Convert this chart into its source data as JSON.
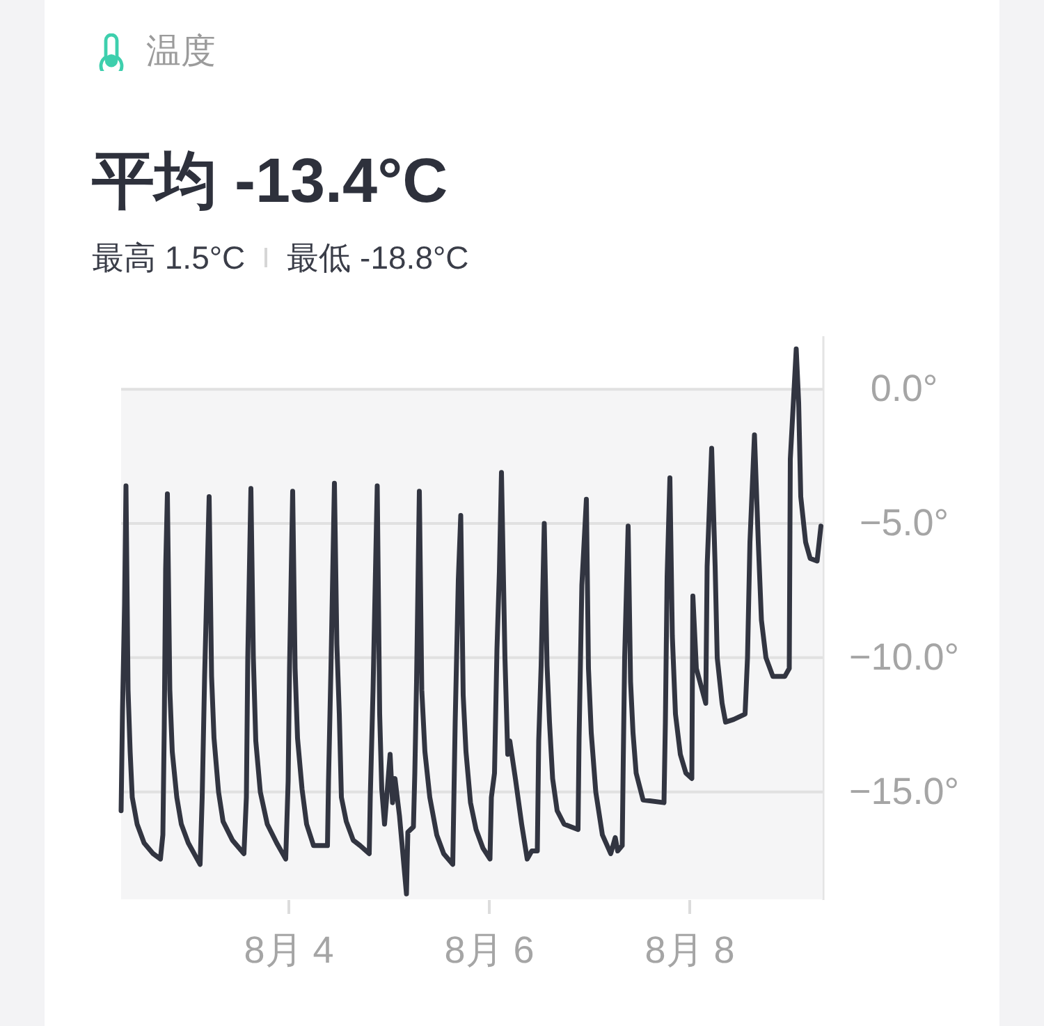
{
  "chart_data": {
    "type": "line",
    "title": "温度",
    "subtitle": "平均 -13.4°C",
    "annotations": [
      "最高 1.5°C",
      "最低 -18.8°C"
    ],
    "x": [
      "--08-02T08:00",
      "--08-02T08:20",
      "--08-02T08:50",
      "--08-02T09:10",
      "--08-02T09:40",
      "--08-02T10:10",
      "--08-02T10:40",
      "--08-02T11:50",
      "--08-02T13:30",
      "--08-02T15:40",
      "--08-02T17:25",
      "--08-02T18:00",
      "--08-02T18:20",
      "--08-02T18:40",
      "--08-02T19:05",
      "--08-02T19:40",
      "--08-02T20:15",
      "--08-02T21:20",
      "--08-02T22:25",
      "--08-03T00:05",
      "--08-03T02:55",
      "--08-03T03:25",
      "--08-03T04:00",
      "--08-03T05:05",
      "--08-03T05:40",
      "--08-03T06:15",
      "--08-03T07:20",
      "--08-03T08:25",
      "--08-03T10:40",
      "--08-03T13:25",
      "--08-03T14:00",
      "--08-03T14:20",
      "--08-03T15:05",
      "--08-03T15:40",
      "--08-03T16:15",
      "--08-03T17:20",
      "--08-03T19:00",
      "--08-03T21:15",
      "--08-03T23:25",
      "--08-04T00:00",
      "--08-04T00:20",
      "--08-04T01:05",
      "--08-04T01:40",
      "--08-04T02:15",
      "--08-04T03:20",
      "--08-04T04:25",
      "--08-04T06:05",
      "--08-04T09:25",
      "--08-04T09:40",
      "--08-04T10:15",
      "--08-04T11:05",
      "--08-04T11:40",
      "--08-04T12:15",
      "--08-04T12:45",
      "--08-04T13:55",
      "--08-04T15:35",
      "--08-04T17:15",
      "--08-04T19:25",
      "--08-04T19:40",
      "--08-04T20:20",
      "--08-04T21:20",
      "--08-04T21:55",
      "--08-04T22:25",
      "--08-04T23:05",
      "--08-05T00:25",
      "--08-05T01:00",
      "--08-05T01:35",
      "--08-05T02:40",
      "--08-05T04:20",
      "--08-05T04:40",
      "--08-05T06:00",
      "--08-05T06:20",
      "--08-05T06:45",
      "--08-05T07:25",
      "--08-05T08:00",
      "--08-05T08:45",
      "--08-05T09:55",
      "--08-05T11:35",
      "--08-05T13:15",
      "--08-05T15:25",
      "--08-05T16:00",
      "--08-05T16:45",
      "--08-05T17:20",
      "--08-05T17:55",
      "--08-05T18:35",
      "--08-05T19:40",
      "--08-05T21:00",
      "--08-05T22:40",
      "--08-06T00:20",
      "--08-06T00:40",
      "--08-06T01:25",
      "--08-06T02:00",
      "--08-06T02:35",
      "--08-06T03:05",
      "--08-06T03:55",
      "--08-06T04:35",
      "--08-06T05:05",
      "--08-06T06:25",
      "--08-06T07:55",
      "--08-06T09:15",
      "--08-06T10:20",
      "--08-06T11:40",
      "--08-06T12:00",
      "--08-06T12:35",
      "--08-06T13:20",
      "--08-06T14:00",
      "--08-06T14:35",
      "--08-06T15:20",
      "--08-06T16:25",
      "--08-06T18:05",
      "--08-06T21:25",
      "--08-06T21:40",
      "--08-06T22:20",
      "--08-06T23:25",
      "--08-06T23:55",
      "--08-07T00:35",
      "--08-07T01:40",
      "--08-07T03:15",
      "--08-07T05:15",
      "--08-07T06:20",
      "--08-07T06:55",
      "--08-07T08:00",
      "--08-07T08:15",
      "--08-07T08:35",
      "--08-07T09:25",
      "--08-07T10:00",
      "--08-07T10:35",
      "--08-07T11:20",
      "--08-07T13:00",
      "--08-07T18:00",
      "--08-07T18:20",
      "--08-07T18:45",
      "--08-07T19:25",
      "--08-07T20:00",
      "--08-07T20:45",
      "--08-07T21:55",
      "--08-07T23:15",
      "--08-08T00:40",
      "--08-08T00:55",
      "--08-08T01:45",
      "--08-08T04:00",
      "--08-08T04:20",
      "--08-08T05:25",
      "--08-08T06:15",
      "--08-08T06:45",
      "--08-08T07:55",
      "--08-08T08:45",
      "--08-08T10:40",
      "--08-08T13:25",
      "--08-08T14:00",
      "--08-08T14:35",
      "--08-08T15:40",
      "--08-08T16:35",
      "--08-08T17:20",
      "--08-08T18:25",
      "--08-08T20:05",
      "--08-08T22:55",
      "--08-09T00:00",
      "--08-09T00:15",
      "--08-09T01:05",
      "--08-09T01:40",
      "--08-09T02:15",
      "--08-09T02:45",
      "--08-09T03:55",
      "--08-09T05:00",
      "--08-09T06:40",
      "--08-09T07:35"
    ],
    "series": [
      {
        "color": "#323541",
        "values": [
          -15.7,
          -12.0,
          -8.0,
          -3.6,
          -11.2,
          -13.5,
          -15.2,
          -16.2,
          -16.9,
          -17.3,
          -17.5,
          -16.6,
          -12.6,
          -6.7,
          -3.9,
          -11.2,
          -13.5,
          -15.2,
          -16.2,
          -16.9,
          -17.7,
          -15.2,
          -10.7,
          -4.0,
          -10.7,
          -13.0,
          -15.0,
          -16.1,
          -16.8,
          -17.3,
          -15.2,
          -10.0,
          -3.7,
          -10.0,
          -13.1,
          -15.0,
          -16.2,
          -16.9,
          -17.5,
          -14.6,
          -10.4,
          -3.8,
          -10.4,
          -13.0,
          -14.9,
          -16.2,
          -17.0,
          -17.0,
          -14.6,
          -10.4,
          -3.5,
          -9.5,
          -12.1,
          -15.2,
          -16.1,
          -16.8,
          -17.0,
          -17.3,
          -15.2,
          -11.2,
          -3.6,
          -12.1,
          -14.9,
          -16.2,
          -13.6,
          -15.4,
          -14.5,
          -15.9,
          -18.8,
          -16.5,
          -16.3,
          -14.3,
          -10.9,
          -3.8,
          -11.2,
          -13.5,
          -15.2,
          -16.6,
          -17.3,
          -17.7,
          -12.4,
          -7.1,
          -4.7,
          -11.4,
          -13.5,
          -15.4,
          -16.4,
          -17.1,
          -17.5,
          -15.2,
          -14.3,
          -9.7,
          -6.8,
          -3.1,
          -10.0,
          -13.6,
          -13.1,
          -14.5,
          -16.2,
          -17.5,
          -17.2,
          -17.2,
          -13.1,
          -10.3,
          -5.0,
          -10.3,
          -12.4,
          -14.5,
          -15.7,
          -16.2,
          -16.4,
          -13.0,
          -7.3,
          -4.1,
          -10.4,
          -12.8,
          -15.0,
          -16.6,
          -17.3,
          -16.7,
          -17.2,
          -17.0,
          -13.8,
          -10.0,
          -5.1,
          -10.9,
          -12.8,
          -14.3,
          -15.3,
          -15.4,
          -12.4,
          -7.0,
          -3.3,
          -9.2,
          -12.1,
          -13.6,
          -14.3,
          -14.5,
          -7.7,
          -10.4,
          -11.7,
          -6.6,
          -2.2,
          -6.6,
          -10.0,
          -11.7,
          -12.4,
          -12.3,
          -12.1,
          -10.0,
          -5.7,
          -1.7,
          -5.7,
          -8.6,
          -10.0,
          -10.7,
          -10.7,
          -10.4,
          -2.6,
          -0.2,
          1.5,
          -0.5,
          -4.0,
          -5.7,
          -6.3,
          -6.4,
          -5.1
        ]
      }
    ],
    "xlim": [
      "--08-02T08:00",
      "--08-09T08:00"
    ],
    "xticks": [
      {
        "value": "--08-04",
        "label": "8月 4"
      },
      {
        "value": "--08-06",
        "label": "8月 6"
      },
      {
        "value": "--08-08",
        "label": "8月 8"
      }
    ],
    "ylim": [
      -19,
      2
    ],
    "yticks": [
      {
        "value": 0,
        "label": "0.0°"
      },
      {
        "value": -5,
        "label": "−5.0°"
      },
      {
        "value": -10,
        "label": "−10.0°"
      },
      {
        "value": -15,
        "label": "−15.0°"
      }
    ],
    "bands": [
      {
        "axis": "y",
        "from": -19,
        "to": 0,
        "color": "#f5f5f6"
      }
    ],
    "grid": "y",
    "marker": "none",
    "line_style": "solid"
  }
}
